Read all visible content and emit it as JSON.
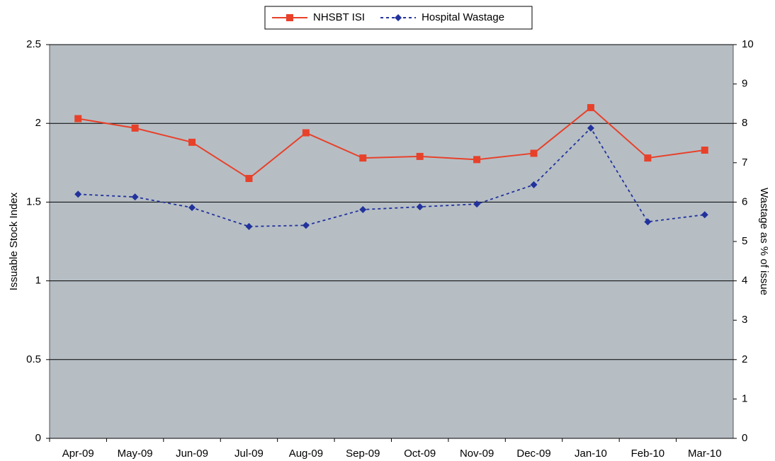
{
  "chart_data": {
    "type": "line",
    "categories": [
      "Apr-09",
      "May-09",
      "Jun-09",
      "Jul-09",
      "Aug-09",
      "Sep-09",
      "Oct-09",
      "Nov-09",
      "Dec-09",
      "Jan-10",
      "Feb-10",
      "Mar-10"
    ],
    "series": [
      {
        "name": "NHSBT ISI",
        "color": "#e8412a",
        "marker": "square",
        "dashed": false,
        "values": [
          2.03,
          1.97,
          1.88,
          1.65,
          1.94,
          1.78,
          1.79,
          1.77,
          1.81,
          2.1,
          1.78,
          1.83
        ]
      },
      {
        "name": "Hospital Wastage",
        "color": "#22329c",
        "marker": "diamond",
        "dashed": true,
        "axis": "y2",
        "values": [
          6.2,
          6.13,
          5.86,
          5.38,
          5.41,
          5.81,
          5.88,
          5.95,
          6.44,
          7.88,
          5.5,
          5.68
        ]
      }
    ],
    "ylabel": "Issuable Stock Index",
    "y2label": "Wastage as % of issue",
    "ylim": [
      0,
      2.5
    ],
    "yticks": [
      0,
      0.5,
      1,
      1.5,
      2,
      2.5
    ],
    "y2lim": [
      0,
      10
    ],
    "y2ticks": [
      0,
      1,
      2,
      3,
      4,
      5,
      6,
      7,
      8,
      9,
      10
    ],
    "grid": true,
    "legend": "top"
  }
}
